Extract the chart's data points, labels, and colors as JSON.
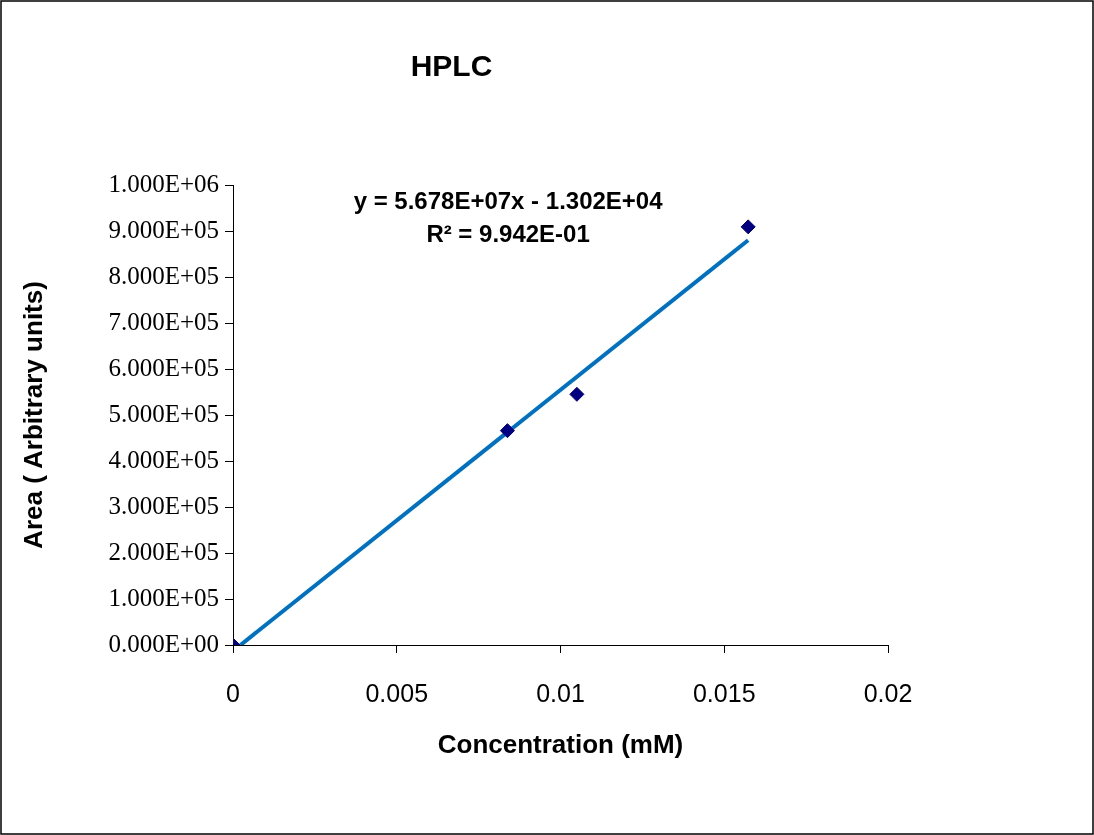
{
  "chart_data": {
    "type": "scatter",
    "title": "HPLC",
    "xlabel": "Concentration (mM)",
    "ylabel": "Area ( Arbitrary units)",
    "series": [
      {
        "color": "#000080",
        "x": [
          0,
          0.00838,
          0.0105,
          0.01573
        ],
        "values": [
          0,
          466000,
          545000,
          909000
        ],
        "marker": "diamond"
      },
      {
        "type": "line",
        "color": "#0070c0",
        "x": [
          0.00023,
          0.01573
        ],
        "values": [
          0,
          880000
        ],
        "marker": "none",
        "line_style": "solid"
      }
    ],
    "xlim": [
      0,
      0.02
    ],
    "xticks": [
      0,
      0.005,
      0.01,
      0.015,
      0.02
    ],
    "ylim": [
      0,
      1000000
    ],
    "yticks": [
      {
        "value": 0,
        "label": "0.000E+00"
      },
      {
        "value": 100000,
        "label": "1.000E+05"
      },
      {
        "value": 200000,
        "label": "2.000E+05"
      },
      {
        "value": 300000,
        "label": "3.000E+05"
      },
      {
        "value": 400000,
        "label": "4.000E+05"
      },
      {
        "value": 500000,
        "label": "5.000E+05"
      },
      {
        "value": 600000,
        "label": "6.000E+05"
      },
      {
        "value": 700000,
        "label": "7.000E+05"
      },
      {
        "value": 800000,
        "label": "8.000E+05"
      },
      {
        "value": 900000,
        "label": "9.000E+05"
      },
      {
        "value": 1000000,
        "label": "1.000E+06"
      }
    ],
    "annotations": [
      "y = 5.678E+07x - 1.302E+04",
      "R² = 9.942E-01"
    ],
    "grid": false,
    "legend": false
  }
}
